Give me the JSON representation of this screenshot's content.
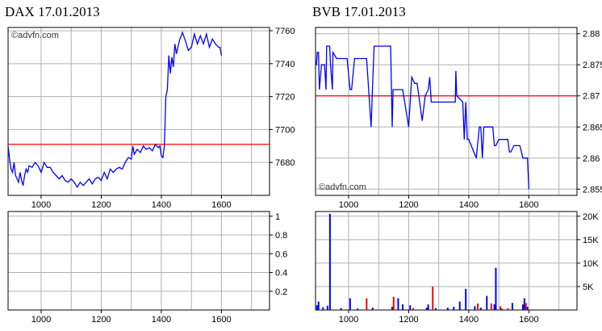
{
  "watermark": "©advfn.com",
  "colors": {
    "price_line": "#0000ff",
    "reference_line": "#ff0000",
    "volume_up": "#0000ff",
    "volume_down": "#ff0000",
    "grid": "#b0b0b0",
    "frame": "#000000"
  },
  "chart_data": [
    {
      "id": "dax-price",
      "type": "line",
      "title": "DAX 17.01.2013",
      "watermark": "©advfn.com",
      "xlim": [
        890,
        1760
      ],
      "ylim": [
        7660,
        7762
      ],
      "x_ticks": [
        1000,
        1200,
        1400,
        1600
      ],
      "x_tick_labels": [
        "1000",
        "1200",
        "1400",
        "1600"
      ],
      "y_ticks": [
        7680,
        7700,
        7720,
        7740,
        7760
      ],
      "y_tick_labels": [
        "7680",
        "7700",
        "7720",
        "7740",
        "7760"
      ],
      "reference_line": 7691,
      "grid": true,
      "series": [
        {
          "x": [
            890,
            895,
            900,
            905,
            910,
            915,
            920,
            925,
            930,
            935,
            940,
            945,
            950,
            955,
            960,
            970,
            980,
            990,
            1000,
            1010,
            1020,
            1030,
            1040,
            1050,
            1060,
            1070,
            1080,
            1090,
            1100,
            1110,
            1120,
            1130,
            1140,
            1150,
            1160,
            1170,
            1180,
            1190,
            1200,
            1210,
            1220,
            1230,
            1240,
            1250,
            1260,
            1270,
            1280,
            1290,
            1300,
            1305,
            1310,
            1320,
            1330,
            1340,
            1350,
            1360,
            1370,
            1380,
            1390,
            1395,
            1400,
            1405,
            1410,
            1415,
            1420,
            1425,
            1430,
            1435,
            1440,
            1445,
            1450,
            1460,
            1470,
            1480,
            1490,
            1500,
            1510,
            1520,
            1530,
            1540,
            1550,
            1560,
            1570,
            1580,
            1590,
            1595,
            1600
          ],
          "values": [
            7690,
            7682,
            7676,
            7674,
            7680,
            7672,
            7670,
            7668,
            7674,
            7669,
            7666,
            7672,
            7676,
            7674,
            7678,
            7677,
            7680,
            7678,
            7674,
            7680,
            7677,
            7677,
            7674,
            7672,
            7670,
            7672,
            7669,
            7668,
            7670,
            7668,
            7665,
            7668,
            7666,
            7668,
            7670,
            7667,
            7670,
            7671,
            7669,
            7674,
            7670,
            7676,
            7674,
            7676,
            7677,
            7676,
            7680,
            7683,
            7682,
            7690,
            7685,
            7688,
            7686,
            7690,
            7688,
            7689,
            7687,
            7691,
            7689,
            7690,
            7684,
            7683,
            7690,
            7720,
            7724,
            7745,
            7734,
            7744,
            7738,
            7752,
            7746,
            7754,
            7759,
            7754,
            7748,
            7750,
            7758,
            7752,
            7757,
            7752,
            7758,
            7750,
            7755,
            7752,
            7750,
            7750,
            7745
          ]
        }
      ]
    },
    {
      "id": "bvb-price",
      "type": "line",
      "title": "BVB 17.01.2013",
      "watermark": "©advfn.com",
      "xlim": [
        890,
        1760
      ],
      "ylim": [
        2.854,
        2.881
      ],
      "x_ticks": [
        1000,
        1200,
        1400,
        1600
      ],
      "x_tick_labels": [
        "1000",
        "1200",
        "1400",
        "1600"
      ],
      "y_ticks": [
        2.855,
        2.86,
        2.865,
        2.87,
        2.875,
        2.88
      ],
      "y_tick_labels": [
        "2.855",
        "2.86",
        "2.865",
        "2.87",
        "2.875",
        "2.88"
      ],
      "reference_line": 2.87,
      "grid": true,
      "series": [
        {
          "x": [
            890,
            893,
            896,
            900,
            903,
            910,
            920,
            925,
            927,
            937,
            940,
            946,
            948,
            960,
            995,
            1005,
            1010,
            1020,
            1040,
            1050,
            1060,
            1075,
            1080,
            1085,
            1100,
            1120,
            1140,
            1145,
            1148,
            1150,
            1165,
            1180,
            1200,
            1210,
            1220,
            1228,
            1245,
            1255,
            1265,
            1270,
            1275,
            1290,
            1340,
            1355,
            1357,
            1360,
            1380,
            1385,
            1390,
            1395,
            1400,
            1425,
            1435,
            1440,
            1445,
            1450,
            1480,
            1485,
            1490,
            1500,
            1510,
            1520,
            1530,
            1535,
            1540,
            1550,
            1560,
            1570,
            1580,
            1590,
            1595,
            1600
          ],
          "values": [
            2.875,
            2.875,
            2.877,
            2.877,
            2.871,
            2.875,
            2.875,
            2.871,
            2.878,
            2.878,
            2.875,
            2.871,
            2.877,
            2.876,
            2.876,
            2.871,
            2.871,
            2.876,
            2.876,
            2.876,
            2.876,
            2.865,
            2.872,
            2.878,
            2.878,
            2.878,
            2.878,
            2.865,
            2.871,
            2.871,
            2.871,
            2.871,
            2.865,
            2.873,
            2.872,
            2.872,
            2.866,
            2.87,
            2.871,
            2.873,
            2.869,
            2.869,
            2.869,
            2.869,
            2.874,
            2.87,
            2.869,
            2.863,
            2.869,
            2.863,
            2.863,
            2.86,
            2.865,
            2.865,
            2.86,
            2.865,
            2.865,
            2.862,
            2.862,
            2.863,
            2.863,
            2.863,
            2.863,
            2.861,
            2.861,
            2.862,
            2.862,
            2.862,
            2.86,
            2.86,
            2.86,
            2.855
          ]
        }
      ]
    },
    {
      "id": "dax-volume",
      "type": "bar",
      "xlim": [
        890,
        1760
      ],
      "ylim": [
        0,
        1.05
      ],
      "x_ticks": [
        1000,
        1200,
        1400,
        1600
      ],
      "x_tick_labels": [
        "1000",
        "1200",
        "1400",
        "1600"
      ],
      "y_ticks": [
        0.2,
        0.4,
        0.6,
        0.8,
        1
      ],
      "y_tick_labels": [
        "0.2",
        "0.4",
        "0.6",
        "0.8",
        "1"
      ],
      "grid": true,
      "series": []
    },
    {
      "id": "bvb-volume",
      "type": "bar",
      "xlim": [
        890,
        1760
      ],
      "ylim": [
        0,
        21000
      ],
      "x_ticks": [
        1000,
        1200,
        1400,
        1600
      ],
      "x_tick_labels": [
        "1000",
        "1200",
        "1400",
        "1600"
      ],
      "y_ticks": [
        5000,
        10000,
        15000,
        20000
      ],
      "y_tick_labels": [
        "5K",
        "10K",
        "15K",
        "20K"
      ],
      "grid": true,
      "series": [
        {
          "name": "up",
          "x": [
            895,
            900,
            915,
            930,
            938,
            975,
            1005,
            1030,
            1080,
            1145,
            1165,
            1180,
            1205,
            1260,
            1265,
            1290,
            1330,
            1350,
            1370,
            1390,
            1420,
            1440,
            1460,
            1485,
            1490,
            1510,
            1545,
            1580,
            1585,
            1595
          ],
          "values": [
            1000,
            1800,
            600,
            900,
            20500,
            400,
            2500,
            300,
            500,
            700,
            2500,
            1200,
            1000,
            500,
            1200,
            400,
            500,
            700,
            1800,
            4500,
            800,
            500,
            3000,
            1200,
            9000,
            300,
            1500,
            1200,
            2500,
            700
          ]
        },
        {
          "name": "down",
          "x": [
            1060,
            1150,
            1215,
            1280,
            1430,
            1475,
            1505,
            1530,
            1590
          ],
          "values": [
            2500,
            2800,
            400,
            5000,
            1400,
            1400,
            800,
            400,
            1500
          ]
        }
      ]
    }
  ]
}
